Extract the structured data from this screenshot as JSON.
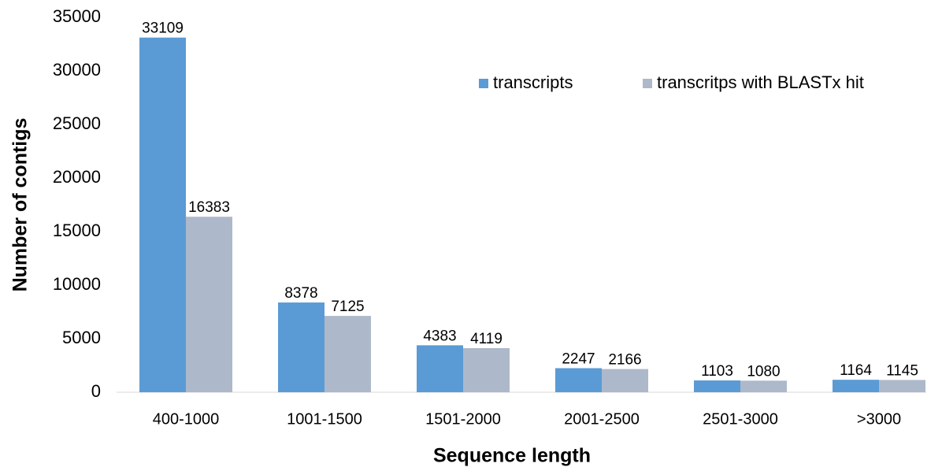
{
  "chart_data": {
    "type": "bar",
    "x_label": "Sequence length",
    "y_label": "Number of contigs",
    "categories": [
      "400-1000",
      "1001-1500",
      "1501-2000",
      "2001-2500",
      "2501-3000",
      ">3000"
    ],
    "series": [
      {
        "name": "transcripts",
        "color": "#5b9bd5",
        "values": [
          33109,
          8378,
          4383,
          2247,
          1103,
          1164
        ]
      },
      {
        "name": "transcritps with BLASTx hit",
        "color": "#adb9ca",
        "values": [
          16383,
          7125,
          4119,
          2166,
          1080,
          1145
        ]
      }
    ],
    "ylim": [
      0,
      35000
    ],
    "yticks": [
      0,
      5000,
      10000,
      15000,
      20000,
      25000,
      30000,
      35000
    ],
    "grid": false,
    "legend": "upper right"
  }
}
